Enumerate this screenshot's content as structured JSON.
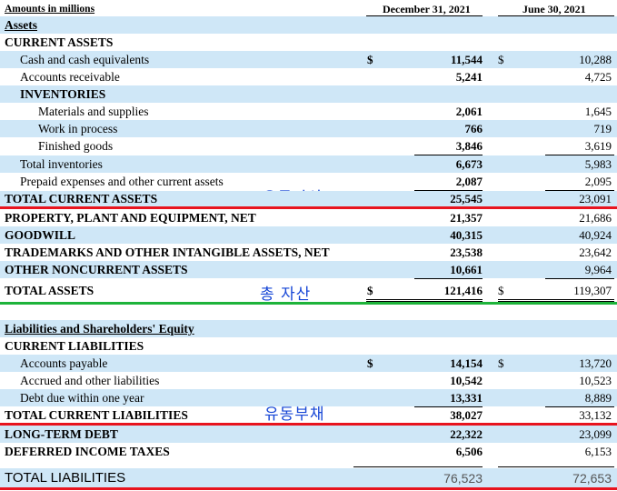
{
  "header": {
    "amounts_label": "Amounts in millions",
    "col1": "December 31, 2021",
    "col2": "June 30, 2021"
  },
  "assets": {
    "heading": "Assets",
    "current_heading": "CURRENT ASSETS",
    "cash": {
      "label": "Cash and cash equivalents",
      "sym1": "$",
      "v1": "11,544",
      "sym2": "$",
      "v2": "10,288"
    },
    "receivable": {
      "label": "Accounts receivable",
      "v1": "5,241",
      "v2": "4,725"
    },
    "inventories_heading": "INVENTORIES",
    "materials": {
      "label": "Materials and supplies",
      "v1": "2,061",
      "v2": "1,645"
    },
    "wip": {
      "label": "Work in process",
      "v1": "766",
      "v2": "719"
    },
    "finished": {
      "label": "Finished goods",
      "v1": "3,846",
      "v2": "3,619"
    },
    "total_inv": {
      "label": "Total inventories",
      "v1": "6,673",
      "v2": "5,983"
    },
    "prepaid": {
      "label": "Prepaid expenses and other current assets",
      "v1": "2,087",
      "v2": "2,095"
    },
    "total_current": {
      "label": "TOTAL CURRENT ASSETS",
      "v1": "25,545",
      "v2": "23,091"
    },
    "ppe": {
      "label": "PROPERTY, PLANT AND EQUIPMENT, NET",
      "v1": "21,357",
      "v2": "21,686"
    },
    "goodwill": {
      "label": "GOODWILL",
      "v1": "40,315",
      "v2": "40,924"
    },
    "trademarks": {
      "label": "TRADEMARKS AND OTHER INTANGIBLE ASSETS, NET",
      "v1": "23,538",
      "v2": "23,642"
    },
    "other_noncurrent": {
      "label": "OTHER NONCURRENT ASSETS",
      "v1": "10,661",
      "v2": "9,964"
    },
    "total_assets": {
      "label": "TOTAL ASSETS",
      "sym1": "$",
      "v1": "121,416",
      "sym2": "$",
      "v2": "119,307"
    }
  },
  "liabilities": {
    "heading": "Liabilities and Shareholders' Equity",
    "current_heading": "CURRENT LIABILITIES",
    "payable": {
      "label": "Accounts payable",
      "sym1": "$",
      "v1": "14,154",
      "sym2": "$",
      "v2": "13,720"
    },
    "accrued": {
      "label": "Accrued and other liabilities",
      "v1": "10,542",
      "v2": "10,523"
    },
    "debt_due": {
      "label": "Debt due within one year",
      "v1": "13,331",
      "v2": "8,889"
    },
    "total_current": {
      "label": "TOTAL CURRENT LIABILITIES",
      "v1": "38,027",
      "v2": "33,132"
    },
    "long_term_debt": {
      "label": "LONG-TERM DEBT",
      "v1": "22,322",
      "v2": "23,099"
    },
    "deferred_tax": {
      "label": "DEFERRED INCOME TAXES",
      "v1": "6,506",
      "v2": "6,153"
    },
    "total_liabilities": {
      "label": "TOTAL LIABILITIES",
      "v1": "76,523",
      "v2": "72,653"
    }
  },
  "annotations": {
    "current_assets": "유동자산",
    "total_assets": "총 자산",
    "current_liabilities": "유동부채"
  },
  "colors": {
    "row_fill": "#cfe7f7",
    "annotation_text": "#1646d6",
    "red_underline": "#e8141e",
    "green_underline": "#1db33a"
  }
}
